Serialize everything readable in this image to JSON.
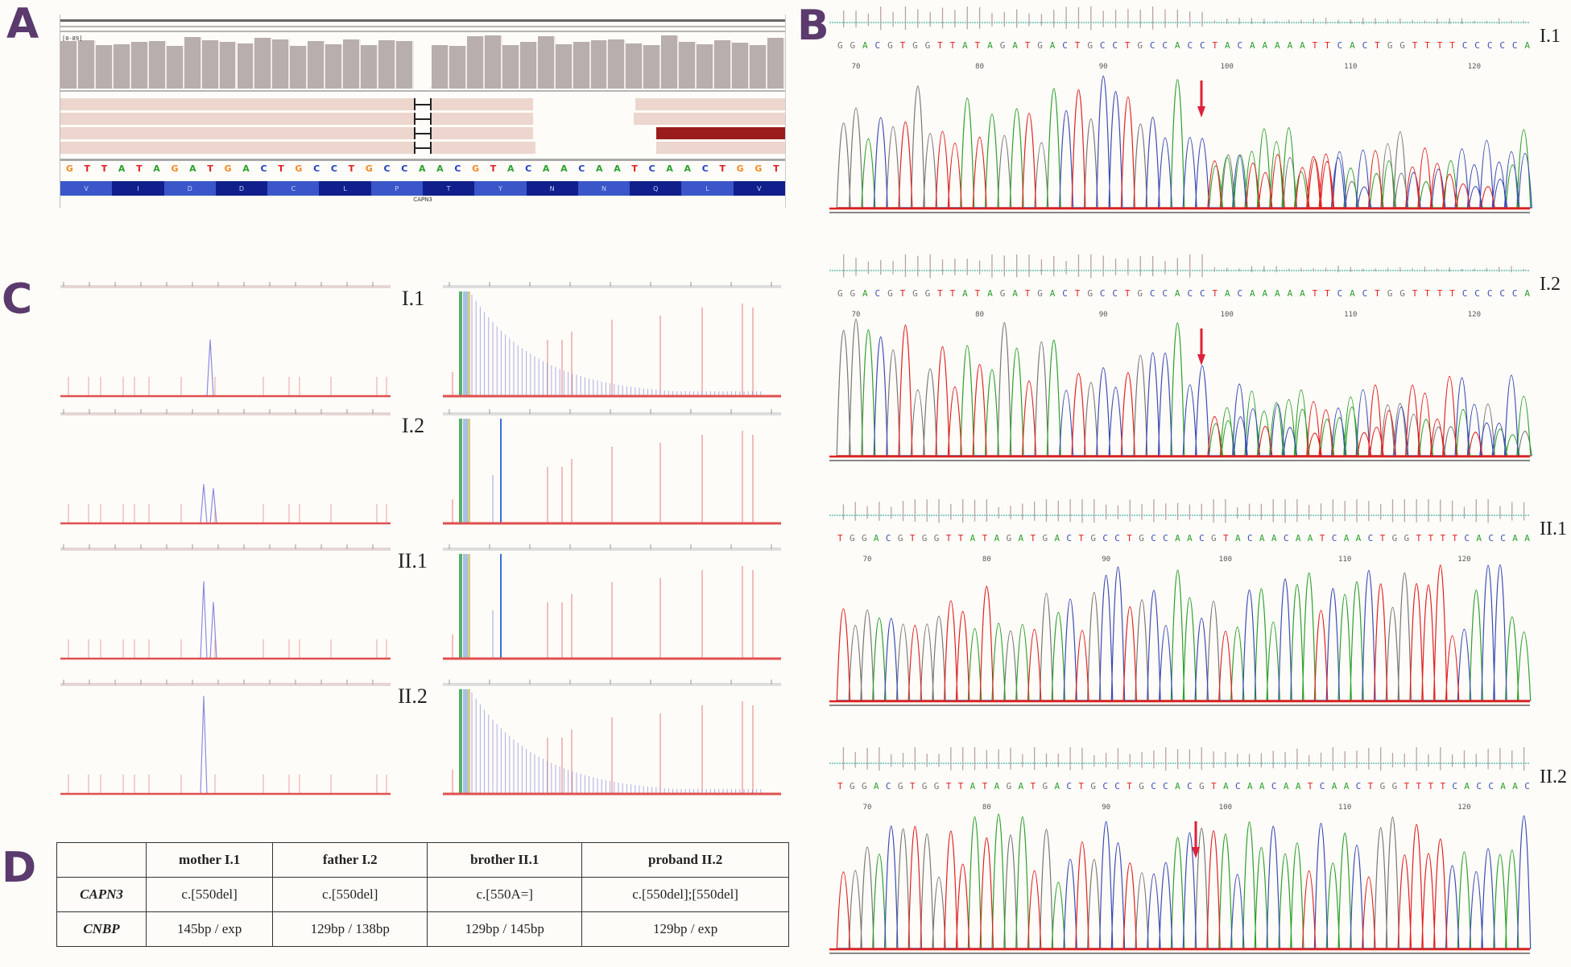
{
  "colors": {
    "panel_letter": "#5b3a6e",
    "base_A": "#2ca02c",
    "base_C": "#3b4bb8",
    "base_G": "#777777",
    "base_T": "#e02020",
    "igv_base_A": "#2ca02c",
    "igv_base_C": "#1f3fbf",
    "igv_base_G": "#f08a24",
    "igv_base_T": "#e02020",
    "arrow": "#e0203a",
    "aa_dark": "#101f8c",
    "aa_light": "#3a56c8"
  },
  "panels": {
    "A": {
      "letter": "A",
      "coverage_range_label": "[0-89]",
      "reference_sequence": [
        "G",
        "T",
        "T",
        "A",
        "T",
        "A",
        "G",
        "A",
        "T",
        "G",
        "A",
        "C",
        "T",
        "G",
        "C",
        "C",
        "T",
        "G",
        "C",
        "C",
        "A",
        "A",
        "C",
        "G",
        "T",
        "A",
        "C",
        "A",
        "A",
        "C",
        "A",
        "A",
        "T",
        "C",
        "A",
        "A",
        "C",
        "T",
        "G",
        "G",
        "T"
      ],
      "amino_acids": [
        "V",
        "I",
        "D",
        "D",
        "C",
        "L",
        "P",
        "T",
        "Y",
        "N",
        "N",
        "Q",
        "L",
        "V"
      ],
      "gene_label": "CAPN3",
      "deletion_base_index": 20
    },
    "B": {
      "letter": "B",
      "arrow_icon": "red-down-arrow",
      "position_ticks": [
        "70",
        "80",
        "90",
        "100",
        "110",
        "120"
      ],
      "traces": [
        {
          "label": "I.1",
          "sequence": [
            "G",
            "G",
            "A",
            "C",
            "G",
            "T",
            "G",
            "G",
            "T",
            "T",
            "A",
            "T",
            "A",
            "G",
            "A",
            "T",
            "G",
            "A",
            "C",
            "T",
            "G",
            "C",
            "C",
            "T",
            "G",
            "C",
            "C",
            "A",
            "C",
            "C",
            "T",
            "A",
            "C",
            "A",
            "A",
            "A",
            "A",
            "A",
            "T",
            "T",
            "C",
            "A",
            "C",
            "T",
            "G",
            "G",
            "T",
            "T",
            "T",
            "T",
            "C",
            "C",
            "C",
            "C",
            "C",
            "A"
          ],
          "heterozygous_deletion": true,
          "arrow": true
        },
        {
          "label": "I.2",
          "sequence": [
            "G",
            "G",
            "A",
            "C",
            "G",
            "T",
            "G",
            "G",
            "T",
            "T",
            "A",
            "T",
            "A",
            "G",
            "A",
            "T",
            "G",
            "A",
            "C",
            "T",
            "G",
            "C",
            "C",
            "T",
            "G",
            "C",
            "C",
            "A",
            "C",
            "C",
            "T",
            "A",
            "C",
            "A",
            "A",
            "A",
            "A",
            "A",
            "T",
            "T",
            "C",
            "A",
            "C",
            "T",
            "G",
            "G",
            "T",
            "T",
            "T",
            "T",
            "C",
            "C",
            "C",
            "C",
            "C",
            "A"
          ],
          "heterozygous_deletion": true,
          "arrow": true
        },
        {
          "label": "II.1",
          "sequence": [
            "T",
            "G",
            "G",
            "A",
            "C",
            "G",
            "T",
            "G",
            "G",
            "T",
            "T",
            "A",
            "T",
            "A",
            "G",
            "A",
            "T",
            "G",
            "A",
            "C",
            "T",
            "G",
            "C",
            "C",
            "T",
            "G",
            "C",
            "C",
            "A",
            "A",
            "C",
            "G",
            "T",
            "A",
            "C",
            "A",
            "A",
            "C",
            "A",
            "A",
            "T",
            "C",
            "A",
            "A",
            "C",
            "T",
            "G",
            "G",
            "T",
            "T",
            "T",
            "T",
            "C",
            "A",
            "C",
            "C",
            "A",
            "A"
          ],
          "heterozygous_deletion": false,
          "arrow": false
        },
        {
          "label": "II.2",
          "sequence": [
            "T",
            "G",
            "G",
            "A",
            "C",
            "G",
            "T",
            "G",
            "G",
            "T",
            "T",
            "A",
            "T",
            "A",
            "G",
            "A",
            "T",
            "G",
            "A",
            "C",
            "T",
            "G",
            "C",
            "C",
            "T",
            "G",
            "C",
            "C",
            "A",
            "C",
            "G",
            "T",
            "A",
            "C",
            "A",
            "A",
            "C",
            "A",
            "A",
            "T",
            "C",
            "A",
            "A",
            "C",
            "T",
            "G",
            "G",
            "T",
            "T",
            "T",
            "T",
            "C",
            "A",
            "C",
            "C",
            "A",
            "A",
            "C"
          ],
          "heterozygous_deletion": false,
          "arrow": true
        }
      ]
    },
    "C": {
      "letter": "C",
      "rows": [
        {
          "label": "I.1",
          "left_peaks": [
            0.55
          ],
          "right_pattern": "expansion-smear"
        },
        {
          "label": "I.2",
          "left_peaks": [
            0.38,
            0.34
          ],
          "right_pattern": "two-alleles"
        },
        {
          "label": "II.1",
          "left_peaks": [
            0.75,
            0.55
          ],
          "right_pattern": "two-alleles"
        },
        {
          "label": "II.2",
          "left_peaks": [
            0.95
          ],
          "right_pattern": "expansion-smear"
        }
      ]
    },
    "D": {
      "letter": "D",
      "table": {
        "headers": [
          "",
          "mother I.1",
          "father I.2",
          "brother II.1",
          "proband II.2"
        ],
        "rows": [
          {
            "gene": "CAPN3",
            "values": [
              "c.[550del]",
              "c.[550del]",
              "c.[550A=]",
              "c.[550del];[550del]"
            ]
          },
          {
            "gene": "CNBP",
            "values": [
              "145bp / exp",
              "129bp / 138bp",
              "129bp / 145bp",
              "129bp / exp"
            ]
          }
        ]
      }
    }
  }
}
